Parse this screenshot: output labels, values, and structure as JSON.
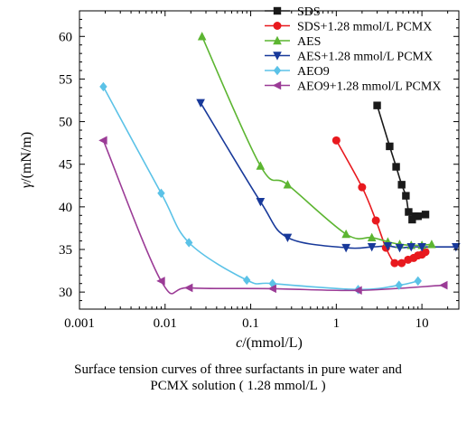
{
  "chart_data": {
    "type": "scatter",
    "title": "",
    "xlabel_var": "c",
    "xlabel_unit": "/(mmol/L)",
    "ylabel_var": "γ",
    "ylabel_unit": "/(mN/m)",
    "xscale": "log",
    "xlim": [
      0.001,
      27
    ],
    "ylim": [
      28,
      63
    ],
    "x_ticks": [
      0.001,
      0.01,
      0.1,
      1,
      10
    ],
    "x_tick_labels": [
      "0.001",
      "0.01",
      "0.1",
      "1",
      "10"
    ],
    "y_ticks": [
      30,
      35,
      40,
      45,
      50,
      55,
      60
    ],
    "y_tick_labels": [
      "30",
      "35",
      "40",
      "45",
      "50",
      "55",
      "60"
    ],
    "legend_position": "top-right",
    "series": [
      {
        "name": "SDS",
        "color": "#1a1a1a",
        "marker": "square",
        "x": [
          3.0,
          4.2,
          5.0,
          5.8,
          6.5,
          7.0,
          7.7,
          8.3,
          9.0,
          11.0
        ],
        "y": [
          51.9,
          47.1,
          44.7,
          42.6,
          41.3,
          39.4,
          38.5,
          38.9,
          38.9,
          39.1
        ]
      },
      {
        "name": "SDS+1.28 mmol/L PCMX",
        "color": "#e8191e",
        "marker": "circle",
        "x": [
          1.0,
          2.0,
          2.9,
          3.8,
          4.8,
          5.8,
          6.9,
          8.0,
          9.0,
          10.0,
          11.0
        ],
        "y": [
          47.8,
          42.3,
          38.4,
          35.2,
          33.4,
          33.4,
          33.8,
          34.0,
          34.3,
          34.4,
          34.7
        ]
      },
      {
        "name": "AES",
        "color": "#5cb531",
        "marker": "triangle-up",
        "x": [
          0.027,
          0.13,
          0.27,
          1.3,
          2.6,
          4.0,
          5.5,
          7.5,
          10.0,
          13.0
        ],
        "y": [
          60.0,
          44.8,
          42.6,
          36.8,
          36.4,
          35.9,
          35.6,
          35.5,
          35.5,
          35.6
        ]
      },
      {
        "name": "AES+1.28 mmol/L PCMX",
        "color": "#18399a",
        "marker": "triangle-down",
        "x": [
          0.026,
          0.13,
          0.27,
          1.3,
          2.6,
          4.0,
          5.5,
          7.5,
          10.0,
          25.0
        ],
        "y": [
          52.2,
          40.6,
          36.4,
          35.2,
          35.3,
          35.4,
          35.2,
          35.3,
          35.3,
          35.3
        ]
      },
      {
        "name": "AEO9",
        "color": "#5bc2e7",
        "marker": "diamond",
        "x": [
          0.0019,
          0.009,
          0.019,
          0.09,
          0.18,
          1.8,
          5.4,
          9.0
        ],
        "y": [
          54.1,
          41.6,
          35.8,
          31.4,
          31.0,
          30.3,
          30.8,
          31.3
        ]
      },
      {
        "name": "AEO9+1.28 mmol/L PCMX",
        "color": "#9b3b96",
        "marker": "triangle-left",
        "x": [
          0.0019,
          0.009,
          0.019,
          0.18,
          1.8,
          18.0
        ],
        "y": [
          47.8,
          31.3,
          30.5,
          30.4,
          30.2,
          30.8
        ]
      }
    ]
  },
  "caption": {
    "line1": "Surface tension curves of three surfactants in pure water and",
    "line2": "PCMX solution ( 1.28 mmol/L )"
  }
}
